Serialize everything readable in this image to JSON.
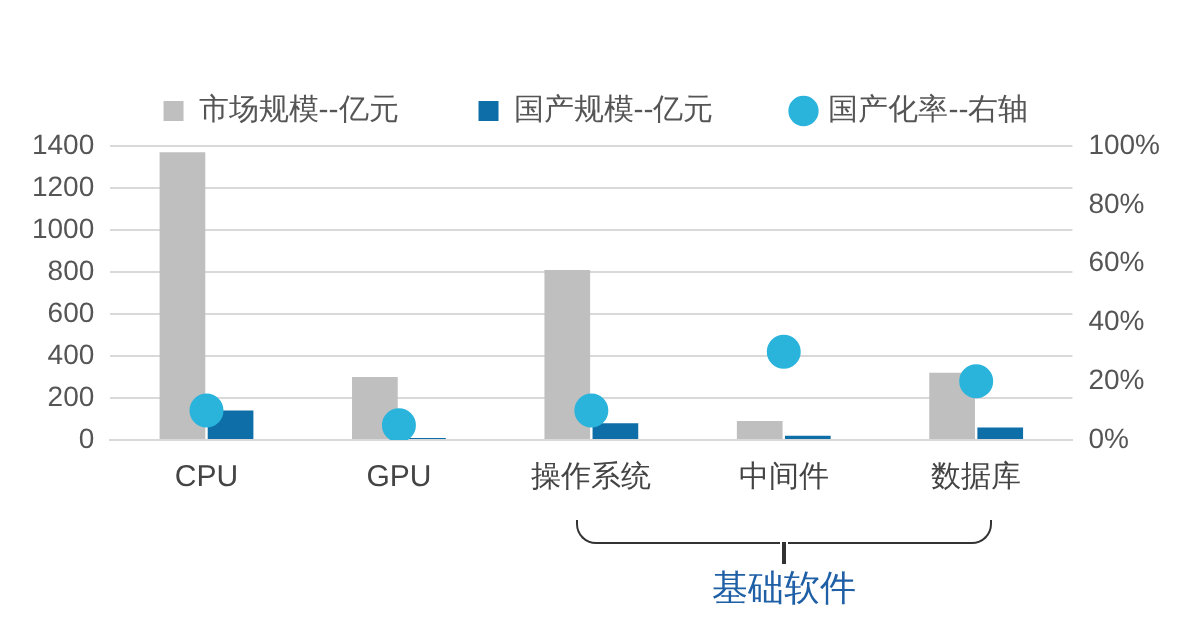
{
  "chart_data": {
    "type": "bar",
    "categories": [
      "CPU",
      "GPU",
      "操作系统",
      "中间件",
      "数据库"
    ],
    "series": [
      {
        "name": "市场规模--亿元",
        "color": "#bfbfbf",
        "values": [
          1370,
          300,
          810,
          90,
          320
        ]
      },
      {
        "name": "国产规模--亿元",
        "color": "#0e6ea8",
        "values": [
          140,
          10,
          80,
          20,
          60
        ]
      },
      {
        "name": "国产化率--右轴",
        "type": "scatter",
        "axis": "y2",
        "color": "#2ab4dc",
        "x": [
          "CPU",
          "GPU",
          "操作系统",
          "中间件",
          "数据库"
        ],
        "values": [
          10,
          5,
          10,
          30,
          20
        ]
      }
    ],
    "ylim": [
      0,
      1400
    ],
    "yticks": [
      0,
      200,
      400,
      600,
      800,
      1000,
      1200,
      1400
    ],
    "y2lim": [
      0,
      100
    ],
    "y2ticks": [
      {
        "value": 0,
        "label": "0%"
      },
      {
        "value": 20,
        "label": "20%"
      },
      {
        "value": 40,
        "label": "40%"
      },
      {
        "value": 60,
        "label": "60%"
      },
      {
        "value": 80,
        "label": "80%"
      },
      {
        "value": 100,
        "label": "100%"
      }
    ],
    "grid": "y",
    "legend": "top",
    "marker": "circle",
    "annotations": [
      "基础软件"
    ]
  }
}
